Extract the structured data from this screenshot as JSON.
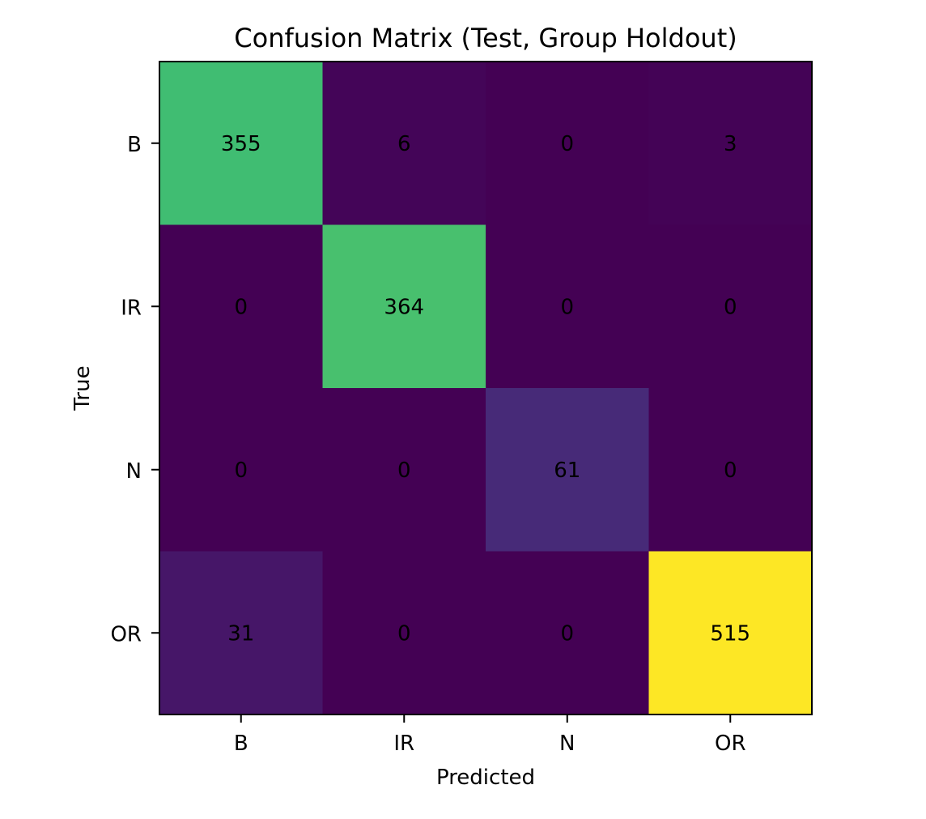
{
  "chart_data": {
    "type": "heatmap",
    "title": "Confusion Matrix (Test, Group Holdout)",
    "xlabel": "Predicted",
    "ylabel": "True",
    "x_categories": [
      "B",
      "IR",
      "N",
      "OR"
    ],
    "y_categories": [
      "B",
      "IR",
      "N",
      "OR"
    ],
    "values": [
      [
        355,
        6,
        0,
        3
      ],
      [
        0,
        364,
        0,
        0
      ],
      [
        0,
        0,
        61,
        0
      ],
      [
        31,
        0,
        0,
        515
      ]
    ],
    "colormap": "viridis",
    "value_range": [
      0,
      515
    ]
  }
}
